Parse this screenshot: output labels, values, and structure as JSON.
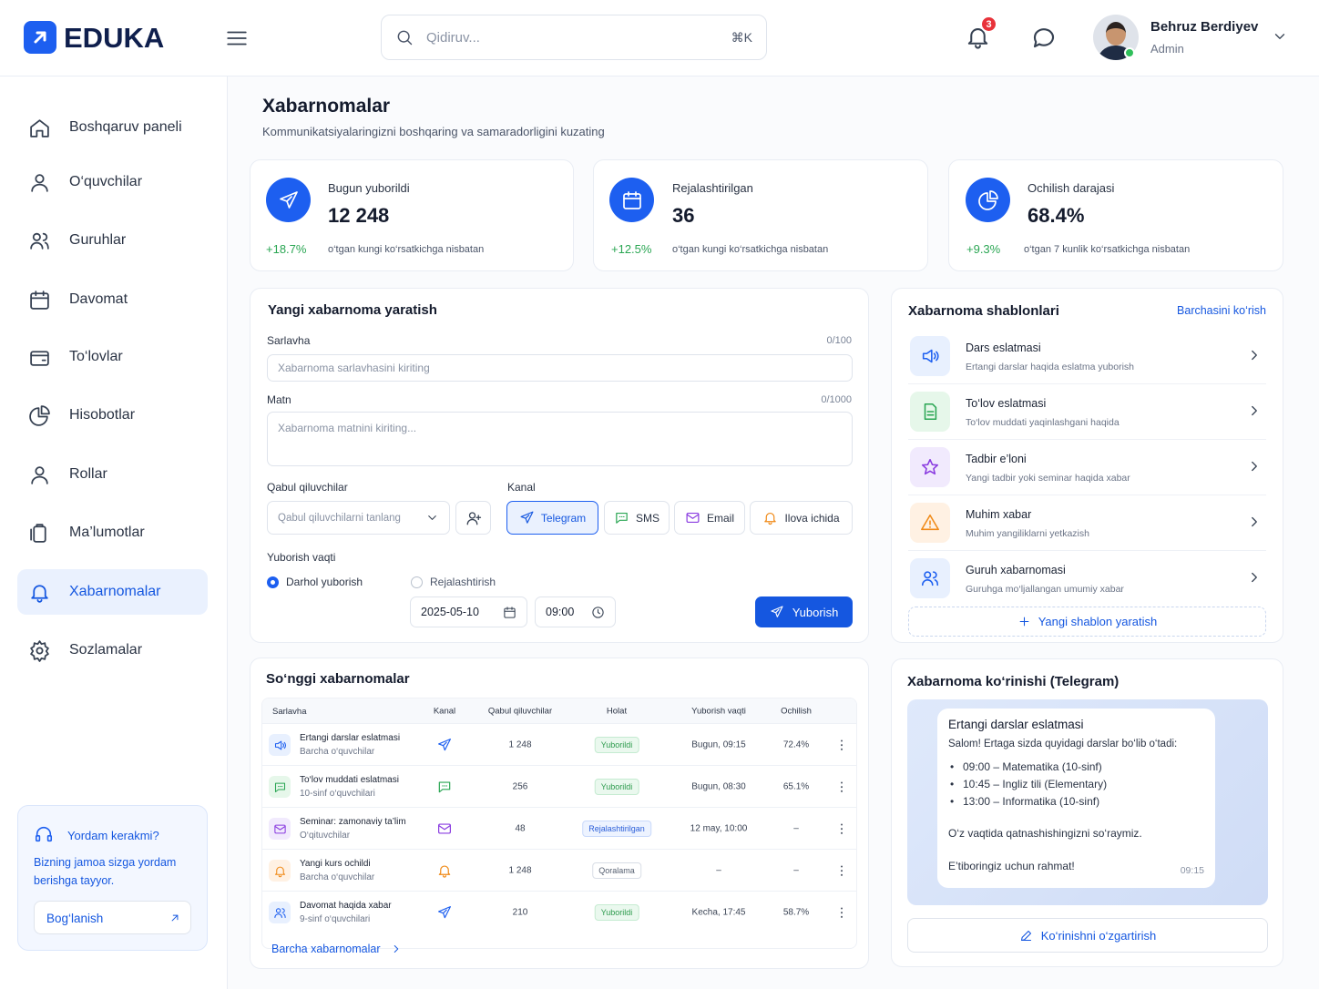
{
  "header": {
    "brand": "EDUKA",
    "search_placeholder": "Qidiruv...",
    "search_shortcut": "⌘K",
    "notification_count": "3",
    "user_name": "Behruz Berdiyev",
    "user_role": "Admin"
  },
  "sidebar": {
    "nav": [
      "Boshqaruv paneli",
      "O‘quvchilar",
      "Guruhlar",
      "Davomat",
      "To‘lovlar",
      "Hisobotlar",
      "Rollar",
      "Ma’lumotlar",
      "Xabarnomalar",
      "Sozlamalar"
    ],
    "help": {
      "title": "Yordam kerakmi?",
      "text": "Bizning jamoa sizga yordam berishga tayyor.",
      "button": "Bog‘lanish"
    }
  },
  "page": {
    "title": "Xabarnomalar",
    "subtitle": "Kommunikatsiyalaringizni boshqaring va samaradorligini kuzating"
  },
  "stats": [
    {
      "label": "Bugun yuborildi",
      "value": "12 248",
      "change": "+18.7%",
      "note": "o‘tgan kungi ko‘rsatkichga nisbatan"
    },
    {
      "label": "Rejalashtirilgan",
      "value": "36",
      "change": "+12.5%",
      "note": "o‘tgan kungi ko‘rsatkichga nisbatan"
    },
    {
      "label": "Ochilish darajasi",
      "value": "68.4%",
      "change": "+9.3%",
      "note": "o‘tgan 7 kunlik ko‘rsatkichga nisbatan"
    }
  ],
  "form": {
    "title": "Yangi xabarnoma yaratish",
    "title_label": "Sarlavha",
    "title_counter": "0/100",
    "title_placeholder": "Xabarnoma sarlavhasini kiriting",
    "text_label": "Matn",
    "text_counter": "0/1000",
    "text_placeholder": "Xabarnoma matnini kiriting...",
    "recipients_label": "Qabul qiluvchilar",
    "recipients_placeholder": "Qabul qiluvchilarni tanlang",
    "channel_label": "Kanal",
    "channels": [
      "Telegram",
      "SMS",
      "Email",
      "Ilova ichida"
    ],
    "time_label": "Yuborish vaqti",
    "options": [
      "Darhol yuborish",
      "Rejalashtirish"
    ],
    "date": "2025-05-10",
    "time": "09:00",
    "submit": "Yuborish"
  },
  "templates": {
    "title": "Xabarnoma shablonlari",
    "link": "Barchasini ko‘rish",
    "items": [
      {
        "title": "Dars eslatmasi",
        "desc": "Ertangi darslar haqida eslatma yuborish"
      },
      {
        "title": "To‘lov eslatmasi",
        "desc": "To‘lov muddati yaqinlashgani haqida"
      },
      {
        "title": "Tadbir e’loni",
        "desc": "Yangi tadbir yoki seminar haqida xabar"
      },
      {
        "title": "Muhim xabar",
        "desc": "Muhim yangiliklarni yetkazish"
      },
      {
        "title": "Guruh xabarnomasi",
        "desc": "Guruhga mo‘ljallangan umumiy xabar"
      }
    ],
    "create": "Yangi shablon yaratish"
  },
  "recent": {
    "title": "So‘nggi xabarnomalar",
    "columns": [
      "Sarlavha",
      "Kanal",
      "Qabul qiluvchilar",
      "Holat",
      "Yuborish vaqti",
      "Ochilish"
    ],
    "rows": [
      {
        "title": "Ertangi darslar eslatmasi",
        "sub": "Barcha o‘quvchilar",
        "recipients": "1 248",
        "status": "Yuborildi",
        "time": "Bugun, 09:15",
        "rate": "72.4%"
      },
      {
        "title": "To‘lov muddati eslatmasi",
        "sub": "10-sinf o‘quvchilari",
        "recipients": "256",
        "status": "Yuborildi",
        "time": "Bugun, 08:30",
        "rate": "65.1%"
      },
      {
        "title": "Seminar: zamonaviy ta’lim",
        "sub": "O‘qituvchilar",
        "recipients": "48",
        "status": "Rejalashtirilgan",
        "time": "12 may, 10:00",
        "rate": "–"
      },
      {
        "title": "Yangi kurs ochildi",
        "sub": "Barcha o‘quvchilar",
        "recipients": "1 248",
        "status": "Qoralama",
        "time": "–",
        "rate": "–"
      },
      {
        "title": "Davomat haqida xabar",
        "sub": "9-sinf o‘quvchilari",
        "recipients": "210",
        "status": "Yuborildi",
        "time": "Kecha, 17:45",
        "rate": "58.7%"
      }
    ],
    "footer": "Barcha xabarnomalar"
  },
  "preview": {
    "title": "Xabarnoma ko‘rinishi (Telegram)",
    "message_title": "Ertangi darslar eslatmasi",
    "intro": "Salom! Ertaga sizda quyidagi darslar bo‘lib o‘tadi:",
    "items": [
      "09:00 – Matematika (10-sinf)",
      "10:45 – Ingliz tili (Elementary)",
      "13:00 – Informatika (10-sinf)"
    ],
    "line1": "O‘z vaqtida qatnashishingizni so‘raymiz.",
    "line2": "E’tiboringiz uchun rahmat!",
    "time": "09:15",
    "button": "Ko‘rinishni o‘zgartirish"
  }
}
